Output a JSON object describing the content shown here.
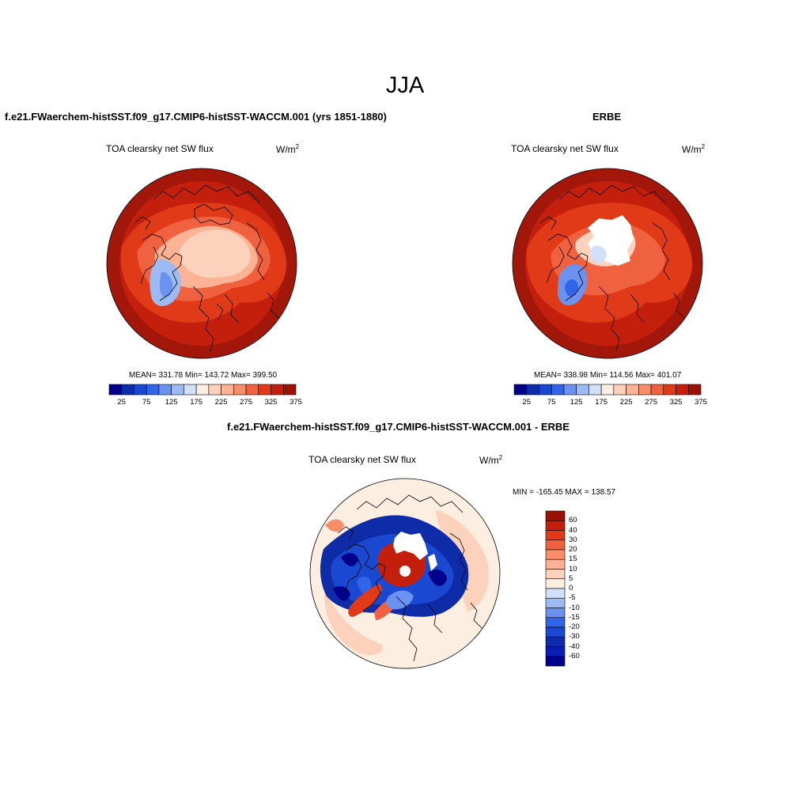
{
  "title": "JJA",
  "panels": {
    "model": {
      "title": "f.e21.FWaerchem-histSST.f09_g17.CMIP6-histSST-WACCM.001 (yrs 1851-1880)",
      "variable": "TOA clearsky net SW flux",
      "units_base": "W/m",
      "units_exp": "2",
      "stats": "MEAN= 331.78  Min= 143.72  Max= 399.50"
    },
    "obs": {
      "title": "ERBE",
      "variable": "TOA clearsky net SW flux",
      "units_base": "W/m",
      "units_exp": "2",
      "stats": "MEAN= 338.98  Min= 114.56  Max= 401.07"
    },
    "diff": {
      "title": "f.e21.FWaerchem-histSST.f09_g17.CMIP6-histSST-WACCM.001 - ERBE",
      "variable": "TOA clearsky net SW flux",
      "units_base": "W/m",
      "units_exp": "2",
      "stats": "MIN = -165.45 MAX = 138.57"
    }
  },
  "colorbar_abs": {
    "colors": [
      "#00008b",
      "#0e2ca8",
      "#1a48d0",
      "#3264e8",
      "#6a92ee",
      "#9dbaf2",
      "#cfe0f8",
      "#fdeee2",
      "#fdd2bd",
      "#fcb395",
      "#f98d6a",
      "#f0623f",
      "#e13a18",
      "#c41f0c",
      "#9a1206"
    ],
    "labels": [
      "25",
      "75",
      "125",
      "175",
      "225",
      "275",
      "325",
      "375"
    ]
  },
  "colorbar_diff": {
    "colors": [
      "#9a1206",
      "#c41f0c",
      "#e13a18",
      "#f0623f",
      "#f98d6a",
      "#fcb395",
      "#fdd2bd",
      "#fdeee2",
      "#cfe0f8",
      "#9dbaf2",
      "#6a92ee",
      "#3264e8",
      "#1a48d0",
      "#0e2ca8",
      "#0a1fb4",
      "#00008b"
    ],
    "labels": [
      "60",
      "40",
      "30",
      "20",
      "15",
      "10",
      "5",
      "0",
      "-5",
      "-10",
      "-15",
      "-20",
      "-30",
      "-40",
      "-60"
    ]
  }
}
